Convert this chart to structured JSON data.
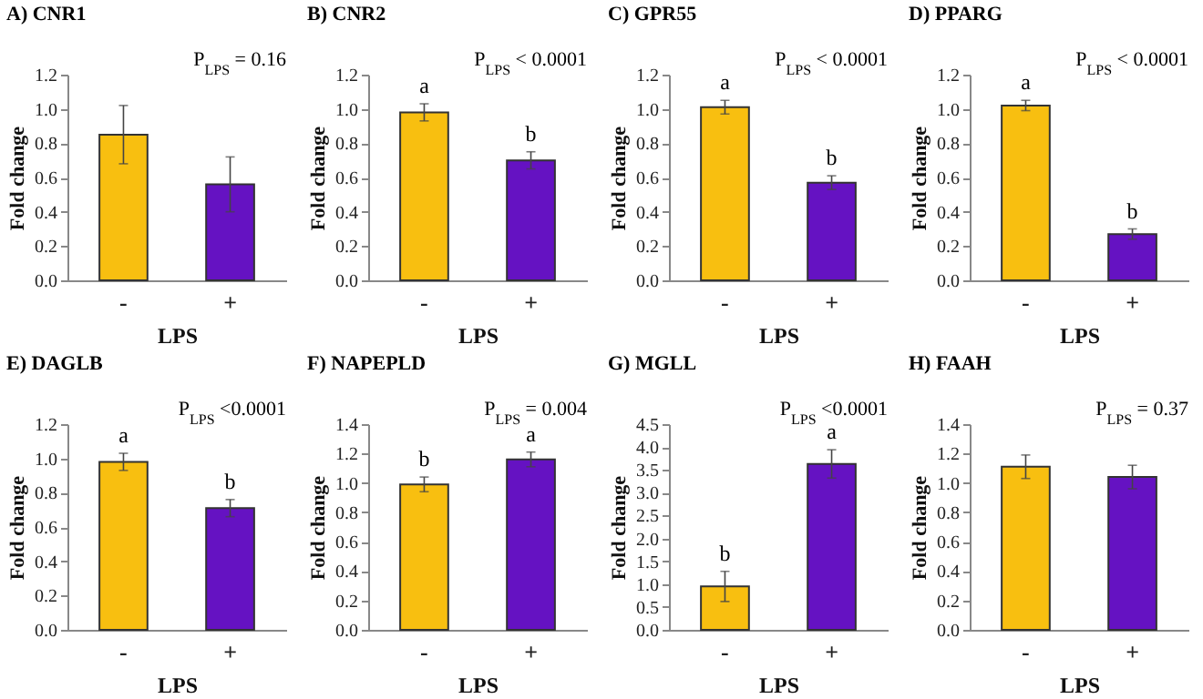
{
  "chart_data": [
    {
      "type": "bar",
      "title": "A) CNR1",
      "categories": [
        "-",
        "+"
      ],
      "values": [
        0.85,
        0.56
      ],
      "errors": [
        0.17,
        0.16
      ],
      "colors": [
        "#f8bf10",
        "#6512c2"
      ],
      "xlabel": "LPS",
      "ylabel": "Fold change",
      "ylim": [
        0,
        1.2
      ],
      "yticks": [
        {
          "value": 0,
          "label": "0.0"
        },
        0.2,
        0.4,
        0.6,
        0.8,
        {
          "value": 1,
          "label": "1.0"
        },
        1.2
      ],
      "annotations": [
        "P$_{LPS}$ = 0.16"
      ]
    },
    {
      "type": "bar",
      "title": "B) CNR2",
      "categories": [
        "-",
        "+"
      ],
      "values": [
        0.98,
        0.7
      ],
      "errors": [
        0.05,
        0.05
      ],
      "colors": [
        "#f8bf10",
        "#6512c2"
      ],
      "xlabel": "LPS",
      "ylabel": "Fold change",
      "ylim": [
        0,
        1.2
      ],
      "yticks": [
        {
          "value": 0,
          "label": "0.0"
        },
        0.2,
        0.4,
        0.6,
        0.8,
        {
          "value": 1,
          "label": "1.0"
        },
        1.2
      ],
      "annotations": [
        "P$_{LPS}$ < 0.0001",
        {
          "text": "a",
          "x": "-",
          "y": 1.03
        },
        {
          "text": "b",
          "x": "+",
          "y": 0.75
        }
      ]
    },
    {
      "type": "bar",
      "title": "C) GPR55",
      "categories": [
        "-",
        "+"
      ],
      "values": [
        1.01,
        0.57
      ],
      "errors": [
        0.04,
        0.04
      ],
      "colors": [
        "#f8bf10",
        "#6512c2"
      ],
      "xlabel": "LPS",
      "ylabel": "Fold change",
      "ylim": [
        0,
        1.2
      ],
      "yticks": [
        {
          "value": 0,
          "label": "0.0"
        },
        0.2,
        0.4,
        0.6,
        0.8,
        {
          "value": 1,
          "label": "1.0"
        },
        1.2
      ],
      "annotations": [
        "P$_{LPS}$ < 0.0001",
        {
          "text": "a",
          "x": "-",
          "y": 1.05
        },
        {
          "text": "b",
          "x": "+",
          "y": 0.61
        }
      ]
    },
    {
      "type": "bar",
      "title": "D) PPARG",
      "categories": [
        "-",
        "+"
      ],
      "values": [
        1.02,
        0.27
      ],
      "errors": [
        0.03,
        0.03
      ],
      "colors": [
        "#f8bf10",
        "#6512c2"
      ],
      "xlabel": "LPS",
      "ylabel": "Fold change",
      "ylim": [
        0,
        1.2
      ],
      "yticks": [
        {
          "value": 0,
          "label": "0.0"
        },
        0.2,
        0.4,
        0.6,
        0.8,
        {
          "value": 1,
          "label": "1.0"
        },
        1.2
      ],
      "annotations": [
        "P$_{LPS}$ < 0.0001",
        {
          "text": "a",
          "x": "-",
          "y": 1.05
        },
        {
          "text": "b",
          "x": "+",
          "y": 0.3
        }
      ]
    },
    {
      "type": "bar",
      "title": "E) DAGLB",
      "categories": [
        "-",
        "+"
      ],
      "values": [
        0.98,
        0.71
      ],
      "errors": [
        0.05,
        0.05
      ],
      "colors": [
        "#f8bf10",
        "#6512c2"
      ],
      "xlabel": "LPS",
      "ylabel": "Fold change",
      "ylim": [
        0,
        1.2
      ],
      "yticks": [
        {
          "value": 0,
          "label": "0.0"
        },
        0.2,
        0.4,
        0.6,
        0.8,
        {
          "value": 1,
          "label": "1.0"
        },
        1.2
      ],
      "annotations": [
        "P$_{LPS}$ <0.0001",
        {
          "text": "a",
          "x": "-",
          "y": 1.03
        },
        {
          "text": "b",
          "x": "+",
          "y": 0.76
        }
      ]
    },
    {
      "type": "bar",
      "title": "F) NAPEPLD",
      "categories": [
        "-",
        "+"
      ],
      "values": [
        0.99,
        1.16
      ],
      "errors": [
        0.05,
        0.05
      ],
      "colors": [
        "#f8bf10",
        "#6512c2"
      ],
      "xlabel": "LPS",
      "ylabel": "Fold change",
      "ylim": [
        0,
        1.4
      ],
      "yticks": [
        {
          "value": 0,
          "label": "0.0"
        },
        0.2,
        0.4,
        0.6,
        0.8,
        {
          "value": 1,
          "label": "1.0"
        },
        1.2,
        1.4
      ],
      "annotations": [
        "P$_{LPS}$ = 0.004",
        {
          "text": "b",
          "x": "-",
          "y": 1.04
        },
        {
          "text": "a",
          "x": "+",
          "y": 1.21
        }
      ]
    },
    {
      "type": "bar",
      "title": "G) MGLL",
      "categories": [
        "-",
        "+"
      ],
      "values": [
        0.95,
        3.63
      ],
      "errors": [
        0.33,
        0.31
      ],
      "colors": [
        "#f8bf10",
        "#6512c2"
      ],
      "xlabel": "LPS",
      "ylabel": "Fold change",
      "ylim": [
        0,
        4.5
      ],
      "yticks": [
        {
          "value": 0,
          "label": "0.0"
        },
        0.5,
        {
          "value": 1,
          "label": "1.0"
        },
        1.5,
        {
          "value": 2,
          "label": "2.0"
        },
        2.5,
        {
          "value": 3,
          "label": "3.0"
        },
        3.5,
        {
          "value": 4,
          "label": "4.0"
        },
        4.5
      ],
      "annotations": [
        "P$_{LPS}$ <0.0001",
        {
          "text": "b",
          "x": "-",
          "y": 1.28
        },
        {
          "text": "a",
          "x": "+",
          "y": 3.94
        }
      ]
    },
    {
      "type": "bar",
      "title": "H) FAAH",
      "categories": [
        "-",
        "+"
      ],
      "values": [
        1.11,
        1.04
      ],
      "errors": [
        0.08,
        0.08
      ],
      "colors": [
        "#f8bf10",
        "#6512c2"
      ],
      "xlabel": "LPS",
      "ylabel": "Fold change",
      "ylim": [
        0,
        1.4
      ],
      "yticks": [
        {
          "value": 0,
          "label": "0.0"
        },
        0.2,
        0.4,
        0.6,
        0.8,
        {
          "value": 1,
          "label": "1.0"
        },
        1.2,
        1.4
      ],
      "annotations": [
        "P$_{LPS}$ = 0.37"
      ]
    }
  ]
}
